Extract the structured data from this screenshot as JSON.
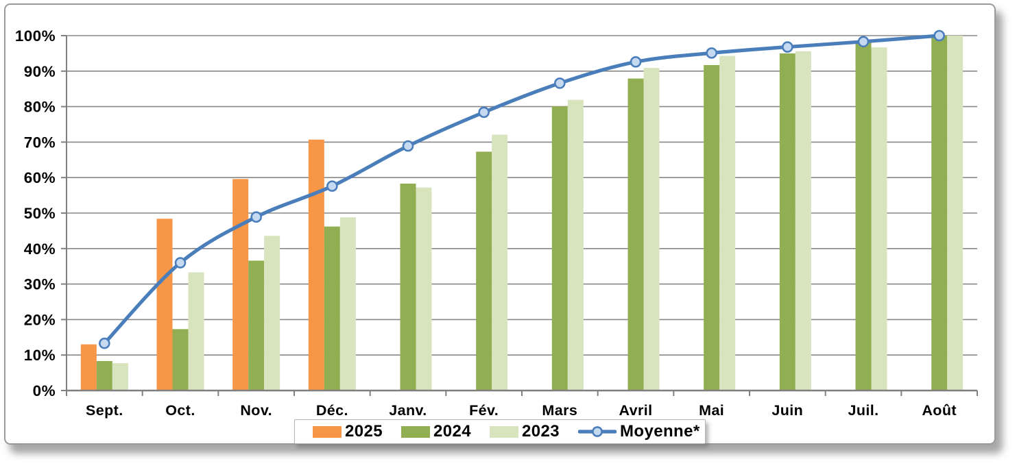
{
  "chart_data": {
    "type": "bar",
    "subtype": "grouped-bars-with-smoothed-line",
    "title": "",
    "xlabel": "",
    "ylabel": "",
    "categories": [
      "Sept.",
      "Oct.",
      "Nov.",
      "Déc.",
      "Janv.",
      "Fév.",
      "Mars",
      "Avril",
      "Mai",
      "Juin",
      "Juil.",
      "Août"
    ],
    "series": [
      {
        "name": "2025",
        "type": "bar",
        "color": "#F79646",
        "values": [
          13.0,
          48.4,
          59.6,
          70.7,
          null,
          null,
          null,
          null,
          null,
          null,
          null,
          null
        ]
      },
      {
        "name": "2024",
        "type": "bar",
        "color": "#92AE53",
        "values": [
          8.3,
          17.3,
          36.6,
          46.2,
          58.3,
          67.3,
          80.1,
          87.9,
          91.7,
          95.0,
          98.1,
          100
        ]
      },
      {
        "name": "2023",
        "type": "bar",
        "color": "#D8E4BD",
        "values": [
          7.7,
          33.3,
          43.6,
          48.8,
          57.2,
          72.1,
          81.9,
          90.9,
          94.3,
          95.6,
          96.7,
          100
        ]
      },
      {
        "name": "Moyenne*",
        "type": "line",
        "color": "#4A7EBB",
        "marker_fill": "#C5D9F1",
        "smooth": true,
        "values": [
          13.3,
          36.0,
          48.9,
          57.6,
          68.9,
          78.4,
          86.6,
          92.6,
          95.1,
          96.8,
          98.3,
          100
        ]
      }
    ],
    "y_axis": {
      "min": 0,
      "max": 100,
      "step": 10,
      "tick_labels": [
        "0%",
        "10%",
        "20%",
        "30%",
        "40%",
        "50%",
        "60%",
        "70%",
        "80%",
        "90%",
        "100%"
      ]
    },
    "grid": true,
    "legend_position": "bottom-center",
    "colors": {
      "gridline": "#878787",
      "axis": "#7F7F7F",
      "tick_text": "#000000",
      "frame_border": "#9A9A9A"
    }
  }
}
